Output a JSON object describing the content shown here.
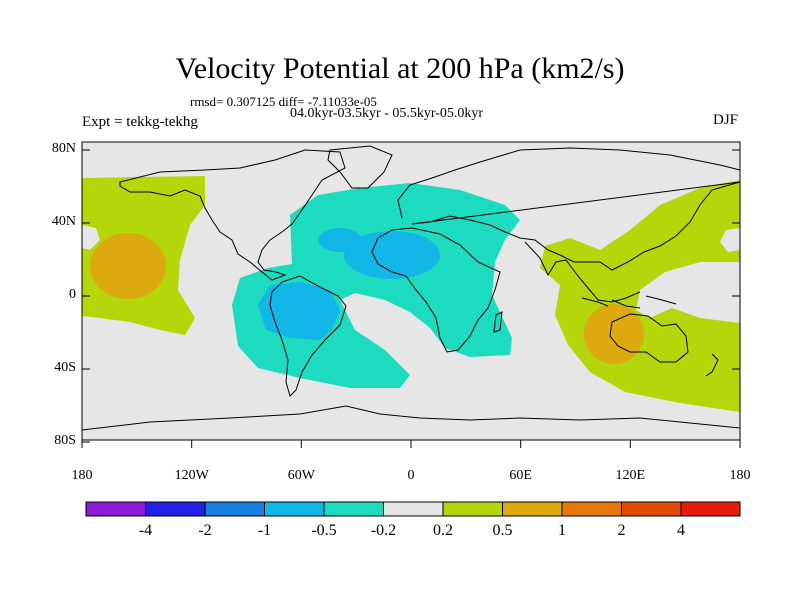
{
  "title": "Velocity Potential at 200 hPa (km2/s)",
  "stats": "rmsd= 0.307125 diff= -7.11033e-05",
  "periods": "04.0kyr-03.5kyr - 05.5kyr-05.0kyr",
  "experiment": "Expt = tekkg-tekhg",
  "season": "DJF",
  "lat_labels": [
    "80N",
    "40N",
    "0",
    "40S",
    "80S"
  ],
  "lon_labels": [
    "180",
    "120W",
    "60W",
    "0",
    "60E",
    "120E",
    "180"
  ],
  "colorbar": {
    "colors": [
      "#8c1ad9",
      "#2020e6",
      "#1a7ee0",
      "#12b7e8",
      "#1ddbbe",
      "#e6e6e6",
      "#b5d60a",
      "#dcaa0e",
      "#e6780c",
      "#e64a08",
      "#e61c0a"
    ],
    "labels": [
      "-4",
      "-2",
      "-1",
      "-0.5",
      "-0.2",
      "0.2",
      "0.5",
      "1",
      "2",
      "4"
    ]
  },
  "map_colors": {
    "background": "#e6e6e6",
    "positive_weak": "#b5d60a",
    "positive_mid": "#dcaa0e",
    "negative_weak": "#1ddbbe",
    "negative_mid": "#12b7e8"
  }
}
